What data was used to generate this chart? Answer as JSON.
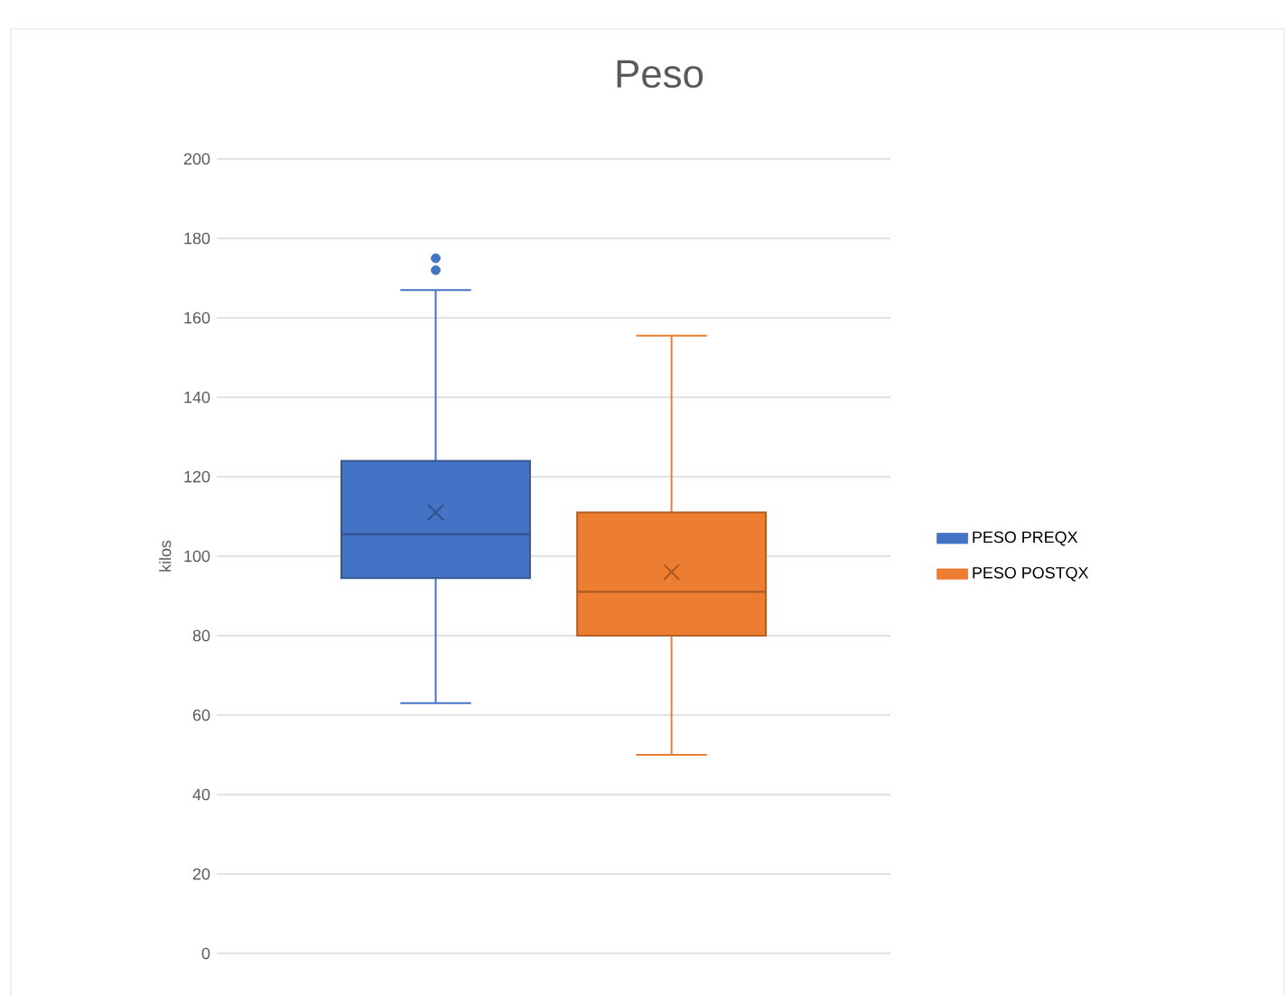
{
  "chart_data": {
    "type": "box",
    "title": "Peso",
    "ylabel": "kilos",
    "categories": [
      null
    ],
    "series": [
      {
        "name": "PESO PREQX",
        "color": "#4472c4",
        "boxes": [
          {
            "low": 63,
            "q1": 94.5,
            "median": 105.5,
            "q3": 124,
            "high": 167,
            "mean": 111,
            "outliers": [
              172,
              175
            ]
          }
        ]
      },
      {
        "name": "PESO POSTQX",
        "color": "#ed7d31",
        "boxes": [
          {
            "low": 50,
            "q1": 80,
            "median": 91,
            "q3": 111,
            "high": 155.5,
            "mean": 96
          }
        ]
      }
    ],
    "ylim": [
      0,
      200
    ],
    "yticks": [
      0,
      20,
      40,
      60,
      80,
      100,
      120,
      140,
      160,
      180,
      200
    ],
    "grid": "y",
    "legend": "right"
  }
}
